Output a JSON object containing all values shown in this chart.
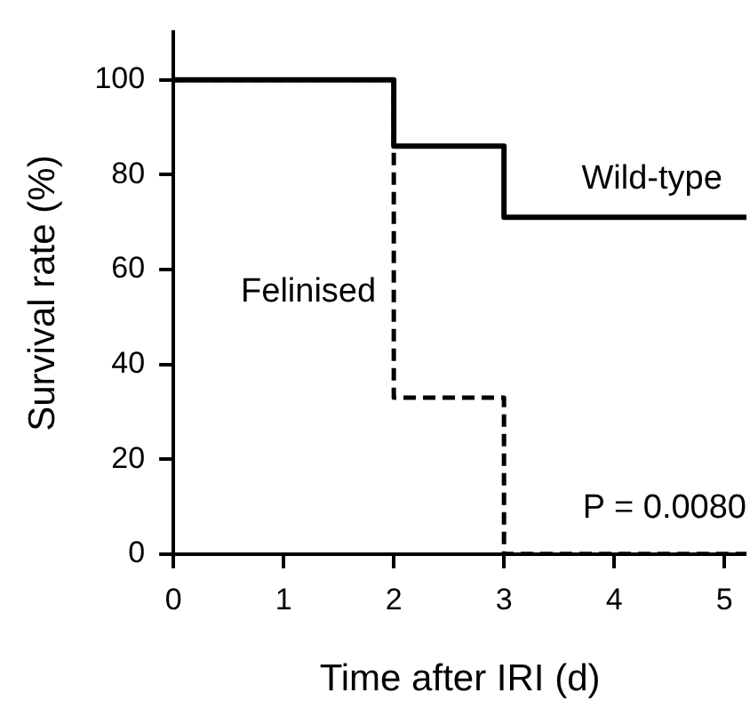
{
  "chart_data": {
    "type": "step",
    "xlabel": "Time after IRI (d)",
    "ylabel": "Survival rate (%)",
    "xlim": [
      0,
      5.2
    ],
    "xticks": [
      0,
      1,
      2,
      3,
      4,
      5
    ],
    "ylim": [
      0,
      110
    ],
    "yticks": [
      0,
      20,
      40,
      60,
      80,
      100
    ],
    "grid": false,
    "legend": false,
    "marker": "none",
    "series": [
      {
        "name": "Wild-type",
        "color": "#000000",
        "line_style": "solid",
        "x": [
          0,
          2,
          3,
          5.2
        ],
        "values": [
          100,
          86,
          71,
          71
        ]
      },
      {
        "name": "Felinised",
        "color": "#000000",
        "line_style": "dashed",
        "x": [
          0,
          2,
          3,
          5.2
        ],
        "values": [
          100,
          33,
          0,
          0
        ]
      }
    ],
    "annotations": [
      "P = 0.0080"
    ]
  }
}
